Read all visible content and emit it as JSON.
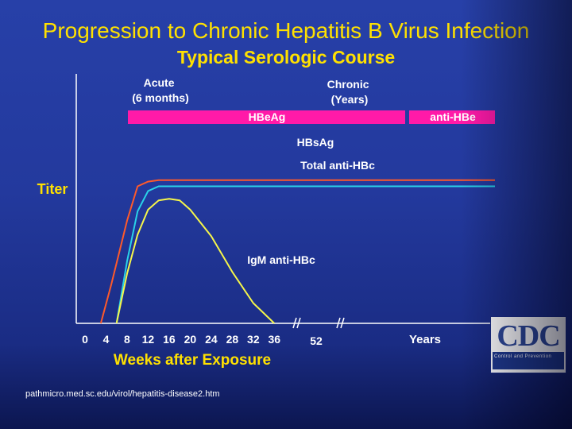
{
  "title": "Progression to Chronic Hepatitis B Virus Infection",
  "subtitle": "Typical Serologic Course",
  "source_text": "pathmicro.med.sc.edu/virol/hepatitis-disease2.htm",
  "logo": {
    "text": "CDC",
    "subtext": "Centers for Disease Control and Prevention"
  },
  "colors": {
    "background": "#23399d",
    "title": "#ffe100",
    "bar": "#ff1aa8",
    "hbsag": "#ff5a2a",
    "total_anti_hbc": "#29d3e8",
    "igm_anti_hbc": "#f6f64a",
    "label": "#ffffff"
  },
  "chart_data": {
    "type": "line",
    "title": "Typical Serologic Course",
    "ylabel": "Titer",
    "xlabel": "Weeks after Exposure",
    "x_ticks": [
      "0",
      "4",
      "8",
      "12",
      "16",
      "20",
      "24",
      "28",
      "32",
      "36",
      "52"
    ],
    "x_unit_label": "Years",
    "axis_break": true,
    "phase_labels": [
      {
        "text": "Acute\n(6 months)"
      },
      {
        "text": "Chronic\n(Years)"
      }
    ],
    "bars": [
      {
        "name": "HBeAg",
        "start_week": 8,
        "end_week": "Years"
      },
      {
        "name": "anti-HBe",
        "start_week": "Years",
        "end_week": "end"
      }
    ],
    "series": [
      {
        "name": "HBsAg",
        "color": "#ff5a2a",
        "points": [
          [
            3,
            0
          ],
          [
            5,
            2.5
          ],
          [
            8,
            6.6
          ],
          [
            10,
            8.8
          ],
          [
            12,
            9.1
          ],
          [
            14,
            9.2
          ],
          [
            16,
            9.2
          ]
        ],
        "continues": "constant"
      },
      {
        "name": "Total anti-HBc",
        "color": "#29d3e8",
        "points": [
          [
            6,
            0
          ],
          [
            8,
            4.0
          ],
          [
            10,
            7.2
          ],
          [
            12,
            8.5
          ],
          [
            14,
            8.8
          ],
          [
            16,
            8.8
          ]
        ],
        "continues": "constant"
      },
      {
        "name": "IgM anti-HBc",
        "color": "#f6f64a",
        "points": [
          [
            6,
            0
          ],
          [
            8,
            3.2
          ],
          [
            10,
            5.7
          ],
          [
            12,
            7.3
          ],
          [
            14,
            7.9
          ],
          [
            16,
            8.0
          ],
          [
            18,
            7.9
          ],
          [
            20,
            7.3
          ],
          [
            24,
            5.6
          ],
          [
            28,
            3.3
          ],
          [
            32,
            1.3
          ],
          [
            36,
            0
          ]
        ]
      }
    ]
  }
}
